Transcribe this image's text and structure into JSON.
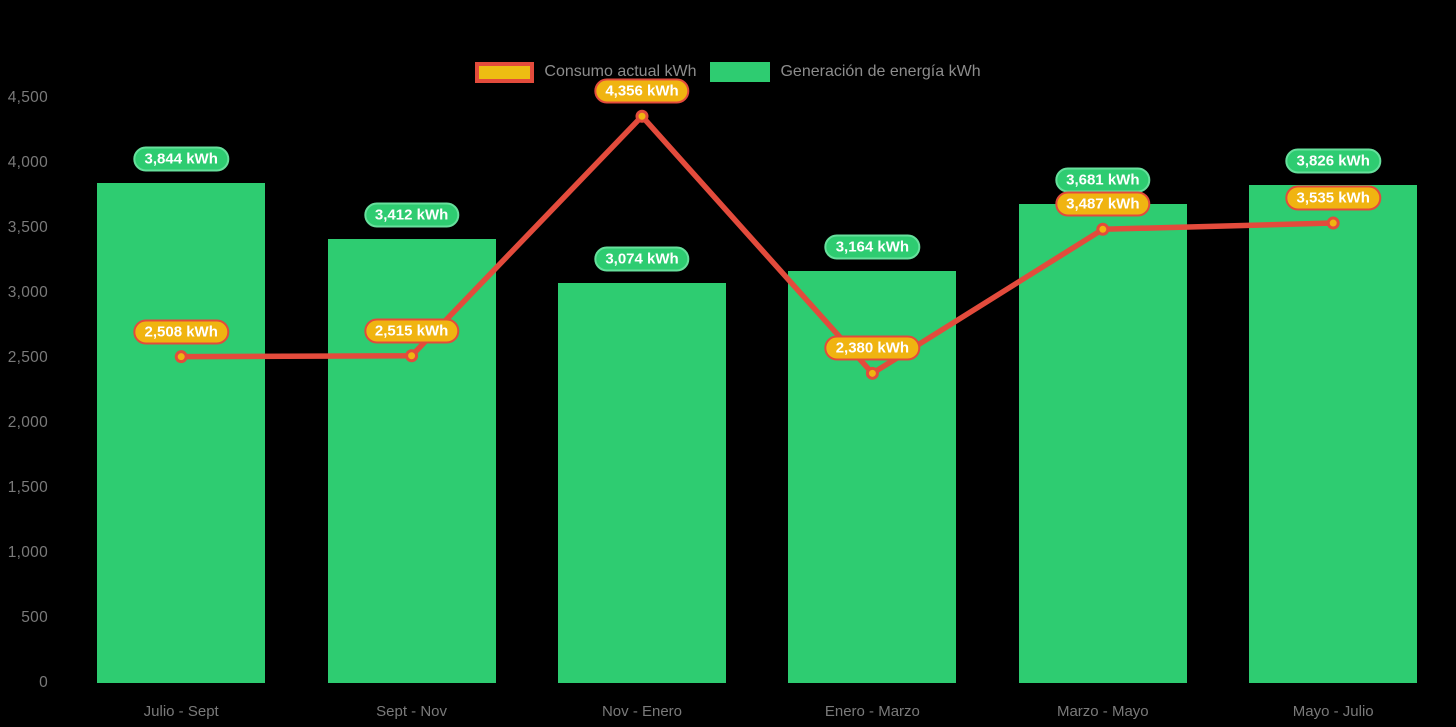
{
  "page": {
    "background": "#000000"
  },
  "legend": {
    "items": [
      {
        "label": "Consumo actual kWh",
        "series_type": "line",
        "swatch_fill": "#edbd12",
        "swatch_border": "#e34b3c"
      },
      {
        "label": "Generación de energía kWh",
        "series_type": "bar",
        "swatch_fill": "#2ecc71"
      }
    ]
  },
  "chart_data": {
    "type": "combo-bar-line",
    "title": "",
    "categories": [
      "Julio - Sept",
      "Sept - Nov",
      "Nov - Enero",
      "Enero - Marzo",
      "Marzo - Mayo",
      "Mayo - Julio"
    ],
    "series": [
      {
        "name": "Generación de energía kWh",
        "type": "bar",
        "color": "#2ecc71",
        "values": [
          3844,
          3412,
          3074,
          3164,
          3681,
          3826
        ],
        "labels": [
          "3,844 kWh",
          "3,412 kWh",
          "3,074 kWh",
          "3,164 kWh",
          "3,681 kWh",
          "3,826 kWh"
        ]
      },
      {
        "name": "Consumo actual kWh",
        "type": "line",
        "color": "#e34b3c",
        "marker_fill": "#f0b411",
        "marker_border": "#e34b3c",
        "values": [
          2508,
          2515,
          4356,
          2380,
          3487,
          3535
        ],
        "labels": [
          "2,508 kWh",
          "2,515 kWh",
          "4,356 kWh",
          "2,380 kWh",
          "3,487 kWh",
          "3,535 kWh"
        ]
      }
    ],
    "xlabel": "",
    "ylabel": "",
    "ylim": [
      0,
      4500
    ],
    "ytick_step": 500,
    "ytick_labels": [
      "0",
      "500",
      "1,000",
      "1,500",
      "2,000",
      "2,500",
      "3,000",
      "3,500",
      "4,000",
      "4,500"
    ],
    "grid": false,
    "legend_position": "top-center",
    "badge_text_color": "#ffffff",
    "axis_text_color": "#7a7a7a"
  }
}
